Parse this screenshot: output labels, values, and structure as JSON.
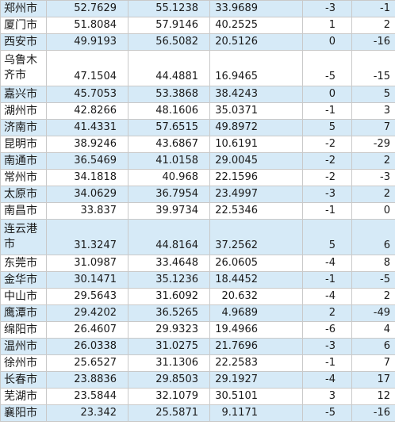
{
  "colors": {
    "row_alt": "#d6eaf7",
    "row_plain": "#ffffff",
    "grid_line": "#c9c9c9"
  },
  "rows": [
    {
      "city": "郑州市",
      "v1": "52.7629",
      "v2": "55.1238",
      "v3": "33.9689",
      "r1": "-3",
      "r2": "-1",
      "alt": true
    },
    {
      "city": "厦门市",
      "v1": "51.8084",
      "v2": "57.9146",
      "v3": "40.2525",
      "r1": "1",
      "r2": "2",
      "alt": false
    },
    {
      "city": "西安市",
      "v1": "49.9193",
      "v2": "56.5082",
      "v3": "20.5126",
      "r1": "0",
      "r2": "-16",
      "alt": true
    },
    {
      "city": "乌鲁木齐市",
      "v1": "47.1504",
      "v2": "44.4881",
      "v3": "16.9465",
      "r1": "-5",
      "r2": "-15",
      "alt": false,
      "tall": true
    },
    {
      "city": "嘉兴市",
      "v1": "45.7053",
      "v2": "53.3868",
      "v3": "38.4243",
      "r1": "0",
      "r2": "5",
      "alt": true
    },
    {
      "city": "湖州市",
      "v1": "42.8266",
      "v2": "48.1606",
      "v3": "35.0371",
      "r1": "-1",
      "r2": "3",
      "alt": false
    },
    {
      "city": "济南市",
      "v1": "41.4331",
      "v2": "57.6515",
      "v3": "49.8972",
      "r1": "5",
      "r2": "7",
      "alt": true
    },
    {
      "city": "昆明市",
      "v1": "38.9246",
      "v2": "43.6867",
      "v3": "10.6191",
      "r1": "-2",
      "r2": "-29",
      "alt": false
    },
    {
      "city": "南通市",
      "v1": "36.5469",
      "v2": "41.0158",
      "v3": "29.0045",
      "r1": "-2",
      "r2": "2",
      "alt": true
    },
    {
      "city": "常州市",
      "v1": "34.1818",
      "v2": "40.968",
      "v3": "22.1596",
      "r1": "-2",
      "r2": "-3",
      "alt": false
    },
    {
      "city": "太原市",
      "v1": "34.0629",
      "v2": "36.7954",
      "v3": "23.4997",
      "r1": "-3",
      "r2": "2",
      "alt": true
    },
    {
      "city": "南昌市",
      "v1": "33.837",
      "v2": "39.9734",
      "v3": "22.5346",
      "r1": "-1",
      "r2": "0",
      "alt": false
    },
    {
      "city": "连云港市",
      "v1": "31.3247",
      "v2": "44.8164",
      "v3": "37.2562",
      "r1": "5",
      "r2": "6",
      "alt": true,
      "tall": true
    },
    {
      "city": "东莞市",
      "v1": "31.0987",
      "v2": "33.4648",
      "v3": "26.0605",
      "r1": "-4",
      "r2": "8",
      "alt": false
    },
    {
      "city": "金华市",
      "v1": "30.1471",
      "v2": "35.1236",
      "v3": "18.4452",
      "r1": "-1",
      "r2": "-5",
      "alt": true
    },
    {
      "city": "中山市",
      "v1": "29.5643",
      "v2": "31.6092",
      "v3": "20.632",
      "r1": "-4",
      "r2": "2",
      "alt": false
    },
    {
      "city": "鹰潭市",
      "v1": "29.4202",
      "v2": "36.5265",
      "v3": "4.9689",
      "r1": "2",
      "r2": "-49",
      "alt": true
    },
    {
      "city": "绵阳市",
      "v1": "26.4607",
      "v2": "29.9323",
      "v3": "19.4966",
      "r1": "-6",
      "r2": "4",
      "alt": false
    },
    {
      "city": "温州市",
      "v1": "26.0338",
      "v2": "31.0275",
      "v3": "21.7696",
      "r1": "-3",
      "r2": "6",
      "alt": true
    },
    {
      "city": "徐州市",
      "v1": "25.6527",
      "v2": "31.1306",
      "v3": "22.2583",
      "r1": "-1",
      "r2": "7",
      "alt": false
    },
    {
      "city": "长春市",
      "v1": "23.8836",
      "v2": "29.8503",
      "v3": "29.1927",
      "r1": "-4",
      "r2": "17",
      "alt": true
    },
    {
      "city": "芜湖市",
      "v1": "23.5844",
      "v2": "32.1079",
      "v3": "30.5101",
      "r1": "3",
      "r2": "12",
      "alt": false
    },
    {
      "city": "襄阳市",
      "v1": "23.342",
      "v2": "25.5871",
      "v3": "9.1171",
      "r1": "-5",
      "r2": "-16",
      "alt": true
    }
  ]
}
